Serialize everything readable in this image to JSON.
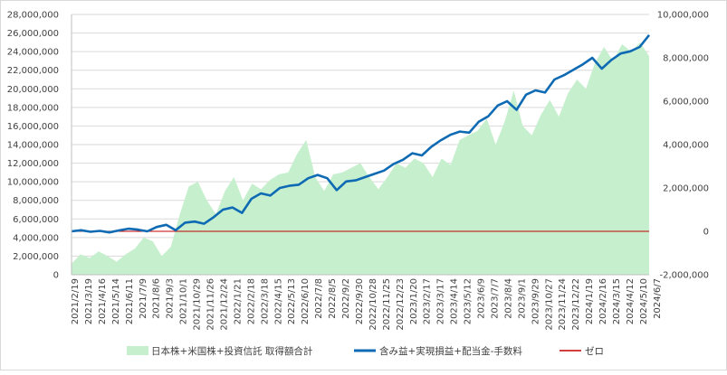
{
  "chart_data": {
    "type": "area",
    "grid": true,
    "legend_position": "bottom",
    "x_tick_labels": [
      "2021/2/19",
      "2021/3/19",
      "2021/4/16",
      "2021/5/14",
      "2021/6/11",
      "2021/7/9",
      "2021/8/6",
      "2021/9/3",
      "2021/10/1",
      "2021/10/29",
      "2021/11/26",
      "2021/12/24",
      "2022/1/21",
      "2022/2/18",
      "2022/3/18",
      "2022/4/15",
      "2022/5/13",
      "2022/6/10",
      "2022/7/8",
      "2022/8/5",
      "2022/9/2",
      "2022/9/30",
      "2022/10/28",
      "2022/11/25",
      "2022/12/23",
      "2023/1/20",
      "2023/2/17",
      "2023/3/17",
      "2023/4/14",
      "2023/5/12",
      "2023/6/9",
      "2023/7/7",
      "2023/8/4",
      "2023/9/1",
      "2023/9/29",
      "2023/10/27",
      "2023/11/24",
      "2023/12/22",
      "2024/1/19",
      "2024/2/16",
      "2024/3/15",
      "2024/4/12",
      "2024/5/10",
      "2024/6/7"
    ],
    "y_left": {
      "ylim": [
        0,
        28000000
      ],
      "ticks": [
        "0",
        "2,000,000",
        "4,000,000",
        "6,000,000",
        "8,000,000",
        "10,000,000",
        "12,000,000",
        "14,000,000",
        "16,000,000",
        "18,000,000",
        "20,000,000",
        "22,000,000",
        "24,000,000",
        "26,000,000",
        "28,000,000"
      ]
    },
    "y_right": {
      "ylim": [
        -2000000,
        10000000
      ],
      "ticks": [
        "-2,000,000",
        "0",
        "2,000,000",
        "4,000,000",
        "6,000,000",
        "8,000,000",
        "10,000,000"
      ]
    },
    "series": [
      {
        "name": "日本株+米国株+投資信託 取得額合計",
        "type": "area",
        "axis": "left",
        "color": "#c6efce",
        "values": [
          1200000,
          2200000,
          1800000,
          2500000,
          2000000,
          1400000,
          2200000,
          2800000,
          4000000,
          3600000,
          2000000,
          3000000,
          6500000,
          9500000,
          10000000,
          8000000,
          6500000,
          9000000,
          10500000,
          8000000,
          9800000,
          9200000,
          10200000,
          10800000,
          11000000,
          13000000,
          14500000,
          10500000,
          9000000,
          10800000,
          11000000,
          11500000,
          12000000,
          10500000,
          9200000,
          10500000,
          12000000,
          11500000,
          12500000,
          12000000,
          10500000,
          12500000,
          11800000,
          14500000,
          15000000,
          15500000,
          16800000,
          14000000,
          16500000,
          19800000,
          16000000,
          15000000,
          17200000,
          18800000,
          17000000,
          19500000,
          21000000,
          20000000,
          22800000,
          24500000,
          23000000,
          24800000,
          24000000,
          25000000,
          23500000
        ]
      },
      {
        "name": "含み益+実現損益+配当金-手数料",
        "type": "line",
        "axis": "right",
        "color": "#0f6ab4",
        "values": [
          0,
          50000,
          -20000,
          20000,
          -50000,
          40000,
          120000,
          80000,
          0,
          200000,
          300000,
          50000,
          400000,
          450000,
          350000,
          650000,
          1000000,
          1100000,
          850000,
          1500000,
          1750000,
          1650000,
          2000000,
          2100000,
          2150000,
          2450000,
          2600000,
          2450000,
          1900000,
          2300000,
          2350000,
          2500000,
          2650000,
          2800000,
          3100000,
          3300000,
          3600000,
          3500000,
          3900000,
          4200000,
          4450000,
          4600000,
          4550000,
          5050000,
          5300000,
          5800000,
          6000000,
          5600000,
          6300000,
          6500000,
          6400000,
          7000000,
          7200000,
          7450000,
          7700000,
          8000000,
          7500000,
          7900000,
          8200000,
          8300000,
          8500000,
          9050000
        ]
      },
      {
        "name": "ゼロ",
        "type": "line",
        "axis": "right",
        "color": "#c00000",
        "values": [
          0
        ]
      }
    ]
  }
}
